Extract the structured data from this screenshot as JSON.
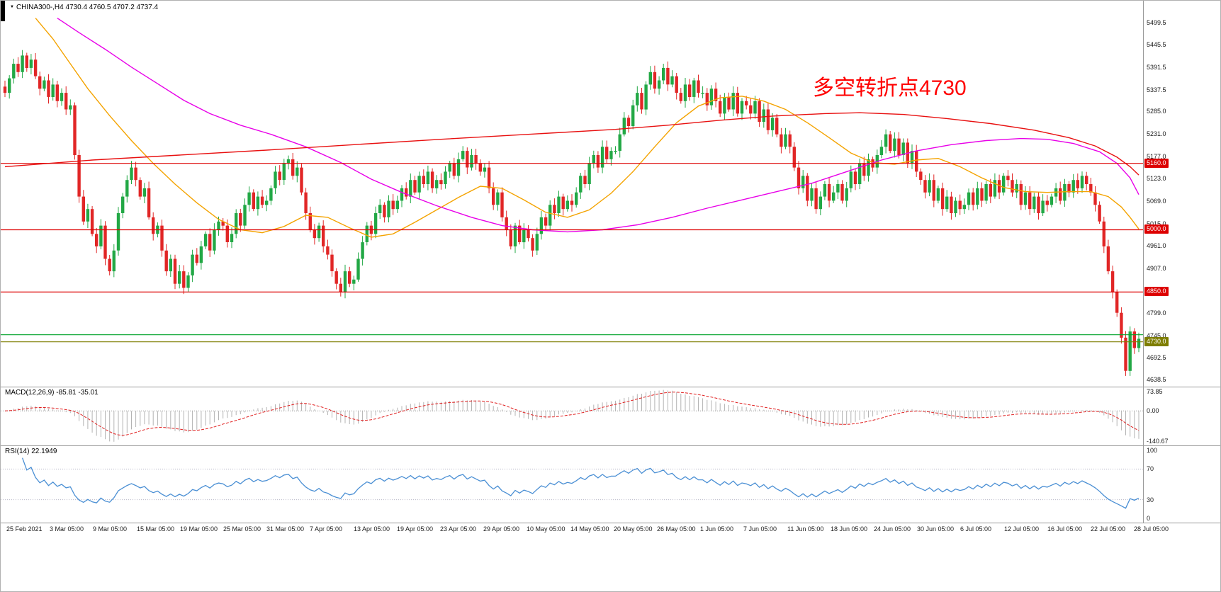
{
  "header": {
    "symbol_timeframe": "CHINA300-,H4",
    "ohlc": "4730.4 4760.5 4707.2 4737.4"
  },
  "annotation": {
    "text": "多空转折点4730",
    "color": "#ff0000"
  },
  "indicators": {
    "macd": {
      "label": "MACD(12,26,9) -85.81 -35.01",
      "axis_labels": [
        "73.85",
        "0.00",
        "-140.67"
      ]
    },
    "rsi": {
      "label": "RSI(14) 22.1949",
      "axis_labels": [
        "100",
        "70",
        "30",
        "0"
      ],
      "levels": [
        70,
        30
      ]
    }
  },
  "colors": {
    "up": "#22a845",
    "down": "#e12626",
    "ma_orange": "#f4a300",
    "ma_magenta": "#e800e8",
    "ma_red": "#e81010",
    "hline_red": "#dd0000",
    "hline_green": "#00a22a",
    "hline_olive": "#7d7d00",
    "macd_bar": "#b3b3b3",
    "macd_signal": "#e02020",
    "rsi_line": "#4a8fd4",
    "level_dotted": "#b8b8c8",
    "zero_dotted": "#999999"
  },
  "chart_data": {
    "type": "candlestick",
    "symbol": "CHINA300-",
    "timeframe": "H4",
    "current": {
      "open": 4730.4,
      "high": 4760.5,
      "low": 4707.2,
      "close": 4737.4
    },
    "y_axis": {
      "min": 4638.5,
      "max": 5499.5,
      "labels": [
        "5499.5",
        "5445.5",
        "5391.5",
        "5337.5",
        "5285.0",
        "5231.0",
        "5177.0",
        "5123.0",
        "5069.0",
        "5015.0",
        "4961.0",
        "4907.0",
        "4853.0",
        "4799.0",
        "4745.0",
        "4692.5",
        "4638.5"
      ]
    },
    "x_axis": {
      "labels": [
        "25 Feb 2021",
        "3 Mar 05:00",
        "9 Mar 05:00",
        "15 Mar 05:00",
        "19 Mar 05:00",
        "25 Mar 05:00",
        "31 Mar 05:00",
        "7 Apr 05:00",
        "13 Apr 05:00",
        "19 Apr 05:00",
        "23 Apr 05:00",
        "29 Apr 05:00",
        "10 May 05:00",
        "14 May 05:00",
        "20 May 05:00",
        "26 May 05:00",
        "1 Jun 05:00",
        "7 Jun 05:00",
        "11 Jun 05:00",
        "18 Jun 05:00",
        "24 Jun 05:00",
        "30 Jun 05:00",
        "6 Jul 05:00",
        "12 Jul 05:00",
        "16 Jul 05:00",
        "22 Jul 05:00",
        "28 Jul 05:00"
      ]
    },
    "closes": [
      5330,
      5365,
      5400,
      5380,
      5420,
      5390,
      5410,
      5370,
      5340,
      5360,
      5320,
      5350,
      5310,
      5330,
      5290,
      5300,
      5180,
      5080,
      5020,
      5050,
      4990,
      4960,
      5010,
      4930,
      4900,
      4950,
      5040,
      5080,
      5120,
      5150,
      5120,
      5080,
      5100,
      5030,
      4990,
      5010,
      4950,
      4900,
      4930,
      4870,
      4900,
      4860,
      4890,
      4940,
      4920,
      4960,
      4990,
      4950,
      5000,
      5020,
      5010,
      4970,
      4990,
      5040,
      5010,
      5060,
      5090,
      5050,
      5080,
      5060,
      5070,
      5100,
      5140,
      5120,
      5160,
      5170,
      5130,
      5150,
      5090,
      5040,
      5000,
      4980,
      5010,
      4960,
      4940,
      4900,
      4870,
      4850,
      4900,
      4870,
      4880,
      4930,
      4970,
      5010,
      4990,
      5040,
      5060,
      5030,
      5070,
      5050,
      5070,
      5100,
      5080,
      5120,
      5090,
      5130,
      5110,
      5140,
      5100,
      5120,
      5110,
      5140,
      5160,
      5130,
      5170,
      5190,
      5150,
      5180,
      5160,
      5140,
      5150,
      5100,
      5060,
      5090,
      5030,
      5000,
      4960,
      5010,
      4970,
      5000,
      4980,
      4950,
      4990,
      5030,
      5010,
      5060,
      5040,
      5080,
      5050,
      5070,
      5060,
      5090,
      5130,
      5110,
      5160,
      5180,
      5150,
      5200,
      5170,
      5190,
      5190,
      5230,
      5270,
      5250,
      5300,
      5330,
      5290,
      5350,
      5380,
      5340,
      5360,
      5390,
      5350,
      5370,
      5330,
      5310,
      5350,
      5320,
      5360,
      5330,
      5330,
      5300,
      5340,
      5310,
      5280,
      5320,
      5290,
      5330,
      5280,
      5310,
      5300,
      5280,
      5310,
      5260,
      5290,
      5240,
      5270,
      5230,
      5200,
      5230,
      5200,
      5150,
      5100,
      5130,
      5070,
      5100,
      5050,
      5080,
      5110,
      5070,
      5090,
      5110,
      5070,
      5100,
      5140,
      5110,
      5160,
      5130,
      5170,
      5150,
      5180,
      5200,
      5230,
      5190,
      5220,
      5180,
      5210,
      5160,
      5190,
      5140,
      5120,
      5090,
      5120,
      5070,
      5100,
      5050,
      5080,
      5040,
      5070,
      5050,
      5060,
      5090,
      5060,
      5100,
      5070,
      5110,
      5080,
      5120,
      5090,
      5130,
      5120,
      5090,
      5110,
      5060,
      5090,
      5050,
      5080,
      5040,
      5070,
      5060,
      5080,
      5100,
      5070,
      5110,
      5090,
      5120,
      5100,
      5130,
      5110,
      5090,
      5060,
      5020,
      4960,
      4900,
      4850,
      4800,
      4740,
      4660,
      4755,
      4715,
      4737.4
    ],
    "horizontal_lines": [
      {
        "price": 5160,
        "color": "#dd0000",
        "label": "5160.0"
      },
      {
        "price": 5000,
        "color": "#dd0000",
        "label": "5000.0"
      },
      {
        "price": 4850,
        "color": "#dd0000",
        "label": "4850.0"
      },
      {
        "price": 4747,
        "color": "#00a22a",
        "label": ""
      },
      {
        "price": 4730,
        "color": "#7d7d00",
        "label": "4730.0"
      }
    ],
    "moving_averages": [
      {
        "name": "fast-orange",
        "color": "#f4a300",
        "points": [
          [
            7,
            5510
          ],
          [
            11,
            5460
          ],
          [
            15,
            5400
          ],
          [
            19,
            5340
          ],
          [
            24,
            5275
          ],
          [
            29,
            5215
          ],
          [
            34,
            5160
          ],
          [
            39,
            5110
          ],
          [
            44,
            5065
          ],
          [
            49,
            5025
          ],
          [
            54,
            5000
          ],
          [
            59,
            4993
          ],
          [
            64,
            5008
          ],
          [
            69,
            5035
          ],
          [
            74,
            5030
          ],
          [
            79,
            5005
          ],
          [
            84,
            4982
          ],
          [
            89,
            4990
          ],
          [
            94,
            5018
          ],
          [
            99,
            5048
          ],
          [
            104,
            5078
          ],
          [
            109,
            5105
          ],
          [
            114,
            5100
          ],
          [
            119,
            5072
          ],
          [
            124,
            5042
          ],
          [
            129,
            5030
          ],
          [
            134,
            5048
          ],
          [
            139,
            5088
          ],
          [
            144,
            5140
          ],
          [
            149,
            5200
          ],
          [
            154,
            5258
          ],
          [
            159,
            5298
          ],
          [
            164,
            5318
          ],
          [
            169,
            5322
          ],
          [
            174,
            5310
          ],
          [
            179,
            5290
          ],
          [
            184,
            5258
          ],
          [
            189,
            5222
          ],
          [
            194,
            5185
          ],
          [
            199,
            5162
          ],
          [
            204,
            5158
          ],
          [
            209,
            5168
          ],
          [
            214,
            5172
          ],
          [
            219,
            5152
          ],
          [
            224,
            5125
          ],
          [
            229,
            5102
          ],
          [
            234,
            5092
          ],
          [
            239,
            5090
          ],
          [
            244,
            5092
          ],
          [
            249,
            5092
          ],
          [
            253,
            5080
          ],
          [
            256,
            5055
          ],
          [
            258,
            5030
          ],
          [
            260,
            5002
          ]
        ]
      },
      {
        "name": "slow-magenta",
        "color": "#e800e8",
        "points": [
          [
            12,
            5510
          ],
          [
            17,
            5475
          ],
          [
            23,
            5435
          ],
          [
            29,
            5392
          ],
          [
            35,
            5352
          ],
          [
            41,
            5312
          ],
          [
            47,
            5280
          ],
          [
            54,
            5252
          ],
          [
            61,
            5230
          ],
          [
            69,
            5200
          ],
          [
            77,
            5162
          ],
          [
            84,
            5122
          ],
          [
            91,
            5090
          ],
          [
            99,
            5058
          ],
          [
            107,
            5030
          ],
          [
            114,
            5010
          ],
          [
            121,
            5000
          ],
          [
            129,
            4995
          ],
          [
            137,
            5000
          ],
          [
            145,
            5012
          ],
          [
            153,
            5030
          ],
          [
            161,
            5052
          ],
          [
            169,
            5072
          ],
          [
            177,
            5092
          ],
          [
            185,
            5112
          ],
          [
            193,
            5140
          ],
          [
            201,
            5168
          ],
          [
            209,
            5190
          ],
          [
            217,
            5205
          ],
          [
            225,
            5215
          ],
          [
            233,
            5220
          ],
          [
            239,
            5218
          ],
          [
            245,
            5208
          ],
          [
            251,
            5188
          ],
          [
            255,
            5160
          ],
          [
            258,
            5125
          ],
          [
            260,
            5085
          ]
        ]
      },
      {
        "name": "long-red",
        "color": "#e81010",
        "points": [
          [
            0,
            5152
          ],
          [
            20,
            5168
          ],
          [
            40,
            5180
          ],
          [
            60,
            5192
          ],
          [
            80,
            5205
          ],
          [
            100,
            5218
          ],
          [
            120,
            5230
          ],
          [
            140,
            5242
          ],
          [
            152,
            5252
          ],
          [
            164,
            5264
          ],
          [
            176,
            5274
          ],
          [
            188,
            5280
          ],
          [
            196,
            5282
          ],
          [
            206,
            5278
          ],
          [
            216,
            5268
          ],
          [
            226,
            5256
          ],
          [
            236,
            5240
          ],
          [
            244,
            5222
          ],
          [
            250,
            5202
          ],
          [
            255,
            5175
          ],
          [
            258,
            5152
          ],
          [
            260,
            5132
          ]
        ]
      }
    ],
    "indicator_panels": [
      {
        "type": "macd",
        "params": [
          12,
          26,
          9
        ],
        "current_macd": -85.81,
        "current_signal": -35.01
      },
      {
        "type": "rsi",
        "params": [
          14
        ],
        "current": 22.1949
      }
    ]
  }
}
